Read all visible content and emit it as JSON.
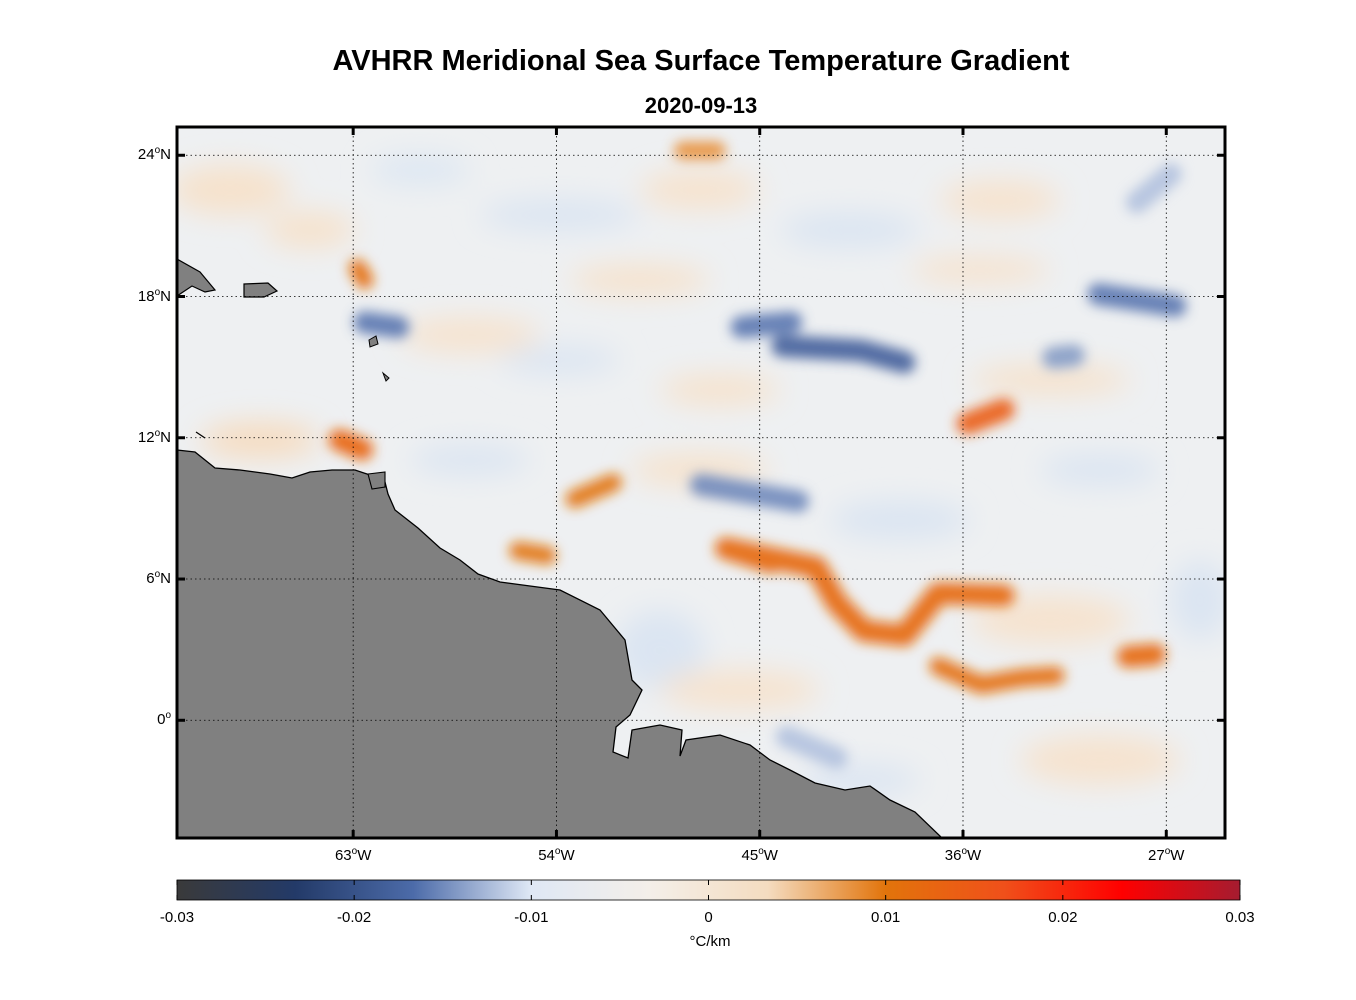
{
  "chart_data": {
    "type": "heatmap",
    "title": "AVHRR Meridional Sea Surface Temperature Gradient",
    "subtitle": "2020-09-13",
    "variable": "Meridional Sea Surface Temperature Gradient",
    "units": "°C/km",
    "lon_range": [
      -70.8,
      -24.4
    ],
    "lat_range": [
      -5.0,
      25.2
    ],
    "lat_ticks": [
      {
        "value": 24,
        "label": "24",
        "hemi": "N"
      },
      {
        "value": 18,
        "label": "18",
        "hemi": "N"
      },
      {
        "value": 12,
        "label": "12",
        "hemi": "N"
      },
      {
        "value": 6,
        "label": "6",
        "hemi": "N"
      },
      {
        "value": 0,
        "label": "0",
        "hemi": ""
      }
    ],
    "lon_ticks": [
      {
        "value": -63,
        "label": "63",
        "hemi": "W"
      },
      {
        "value": -54,
        "label": "54",
        "hemi": "W"
      },
      {
        "value": -45,
        "label": "45",
        "hemi": "W"
      },
      {
        "value": -36,
        "label": "36",
        "hemi": "W"
      },
      {
        "value": -27,
        "label": "27",
        "hemi": "W"
      }
    ],
    "colorbar": {
      "min": -0.03,
      "max": 0.03,
      "ticks": [
        {
          "value": -0.03,
          "label": "-0.03"
        },
        {
          "value": -0.02,
          "label": "-0.02"
        },
        {
          "value": -0.01,
          "label": "-0.01"
        },
        {
          "value": 0,
          "label": "0"
        },
        {
          "value": 0.01,
          "label": "0.01"
        },
        {
          "value": 0.02,
          "label": "0.02"
        },
        {
          "value": 0.03,
          "label": "0.03"
        }
      ],
      "label": "°C/km",
      "colors": [
        "#3a3a3a",
        "#233a68",
        "#4c6ba9",
        "#dfe8f5",
        "#f4efe9",
        "#f4dcc0",
        "#e2740b",
        "#f0501a",
        "#ff0000",
        "#a51c30"
      ]
    },
    "features": [
      {
        "kind": "positive",
        "desc": "frontal band",
        "points": [
          [
            -44.5,
            6.7
          ],
          [
            -46.5,
            7.3
          ],
          [
            -42.5,
            6.5
          ],
          [
            -41.6,
            5.0
          ],
          [
            -40.4,
            3.8
          ],
          [
            -38.6,
            3.6
          ],
          [
            -37.1,
            5.4
          ],
          [
            -34.2,
            5.3
          ]
        ],
        "value": 0.012
      },
      {
        "kind": "positive",
        "desc": "southern band",
        "points": [
          [
            -37.1,
            2.3
          ],
          [
            -35.2,
            1.5
          ],
          [
            -33.4,
            1.8
          ],
          [
            -31.9,
            1.9
          ]
        ],
        "value": 0.011
      },
      {
        "kind": "positive",
        "points": [
          [
            -28.7,
            2.7
          ],
          [
            -27.5,
            2.8
          ]
        ],
        "value": 0.012
      },
      {
        "kind": "positive",
        "points": [
          [
            -53.2,
            9.4
          ],
          [
            -51.5,
            10.1
          ]
        ],
        "value": 0.01
      },
      {
        "kind": "positive",
        "points": [
          [
            -55.7,
            7.2
          ],
          [
            -54.4,
            7.0
          ]
        ],
        "value": 0.01
      },
      {
        "kind": "positive",
        "points": [
          [
            -63.6,
            11.9
          ],
          [
            -62.6,
            11.5
          ]
        ],
        "value": 0.013
      },
      {
        "kind": "positive",
        "points": [
          [
            -35.8,
            12.6
          ],
          [
            -34.2,
            13.2
          ]
        ],
        "value": 0.014
      },
      {
        "kind": "positive",
        "points": [
          [
            -62.8,
            19.2
          ],
          [
            -62.5,
            18.7
          ]
        ],
        "value": 0.011
      },
      {
        "kind": "positive",
        "points": [
          [
            -48.4,
            24.2
          ],
          [
            -46.9,
            24.2
          ]
        ],
        "value": 0.008
      },
      {
        "kind": "negative",
        "points": [
          [
            -45.8,
            16.7
          ],
          [
            -43.6,
            16.9
          ]
        ],
        "value": -0.016
      },
      {
        "kind": "negative",
        "points": [
          [
            -44.0,
            15.9
          ],
          [
            -40.5,
            15.7
          ],
          [
            -38.6,
            15.2
          ]
        ],
        "value": -0.018
      },
      {
        "kind": "negative",
        "points": [
          [
            -47.6,
            10.0
          ],
          [
            -43.3,
            9.3
          ]
        ],
        "value": -0.015
      },
      {
        "kind": "negative",
        "points": [
          [
            -62.5,
            16.9
          ],
          [
            -61.0,
            16.7
          ]
        ],
        "value": -0.016
      },
      {
        "kind": "negative",
        "points": [
          [
            -30.0,
            18.1
          ],
          [
            -26.6,
            17.6
          ]
        ],
        "value": -0.016
      },
      {
        "kind": "negative",
        "points": [
          [
            -32.0,
            15.4
          ],
          [
            -31.1,
            15.5
          ]
        ],
        "value": -0.014
      },
      {
        "kind": "negative",
        "points": [
          [
            -28.3,
            22.0
          ],
          [
            -26.8,
            23.2
          ]
        ],
        "value": -0.012
      },
      {
        "kind": "negative",
        "points": [
          [
            -43.8,
            -0.7
          ],
          [
            -41.6,
            -1.6
          ]
        ],
        "value": -0.012
      }
    ]
  }
}
